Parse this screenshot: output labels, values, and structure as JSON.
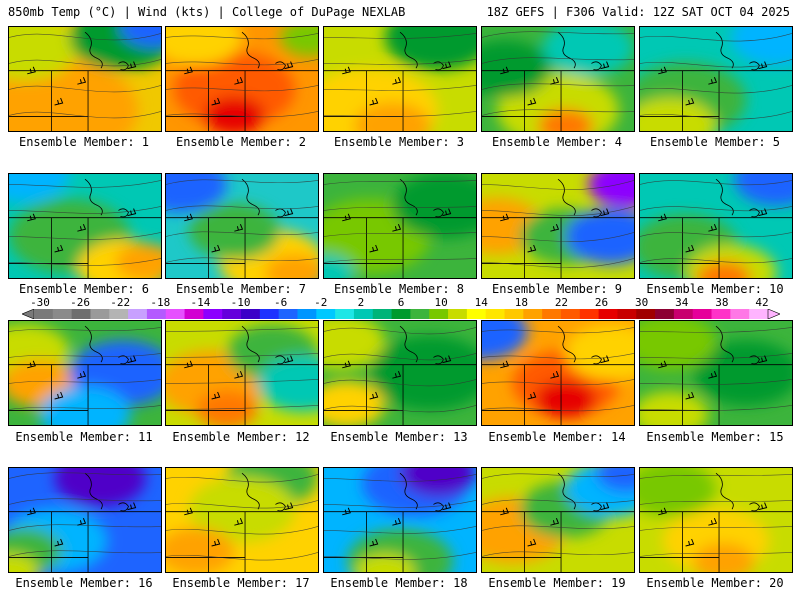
{
  "header": {
    "left": "850mb Temp (°C) | Wind (kts) | College of DuPage NEXLAB",
    "right": "18Z GEFS | F306 Valid: 12Z SAT OCT 04 2025"
  },
  "members": [
    {
      "label": "Ensemble Member: 1",
      "base": "#f0c800",
      "blobs": [
        [
          "#ffa200",
          0.3,
          0.8,
          0.55
        ],
        [
          "#c8dc00",
          0.1,
          0.2,
          0.35
        ],
        [
          "#009a2e",
          0.75,
          0.1,
          0.35
        ],
        [
          "#1e64ff",
          0.95,
          0.0,
          0.22
        ]
      ]
    },
    {
      "label": "Ensemble Member: 2",
      "base": "#ff9600",
      "blobs": [
        [
          "#ff5a00",
          0.45,
          0.6,
          0.4
        ],
        [
          "#e60000",
          0.45,
          0.85,
          0.2
        ],
        [
          "#ffd200",
          0.2,
          0.1,
          0.3
        ],
        [
          "#78c800",
          0.95,
          0.1,
          0.2
        ]
      ]
    },
    {
      "label": "Ensemble Member: 3",
      "base": "#c8dc00",
      "blobs": [
        [
          "#ffd200",
          0.3,
          0.8,
          0.45
        ],
        [
          "#009a2e",
          0.75,
          0.1,
          0.35
        ],
        [
          "#ffa200",
          0.45,
          0.95,
          0.25
        ]
      ]
    },
    {
      "label": "Ensemble Member: 4",
      "base": "#3cb43c",
      "blobs": [
        [
          "#c8dc00",
          0.5,
          0.8,
          0.4
        ],
        [
          "#ff7800",
          0.55,
          0.95,
          0.18
        ],
        [
          "#00c8b4",
          0.7,
          0.2,
          0.3
        ],
        [
          "#009a2e",
          0.15,
          0.4,
          0.3
        ]
      ]
    },
    {
      "label": "Ensemble Member: 5",
      "base": "#00c8b4",
      "blobs": [
        [
          "#3cb43c",
          0.3,
          0.7,
          0.4
        ],
        [
          "#c8dc00",
          0.2,
          0.95,
          0.3
        ],
        [
          "#00b4ff",
          0.9,
          0.1,
          0.3
        ]
      ]
    },
    {
      "label": "Ensemble Member: 6",
      "base": "#00c8b4",
      "blobs": [
        [
          "#3cb43c",
          0.4,
          0.6,
          0.4
        ],
        [
          "#ffd200",
          0.75,
          0.9,
          0.3
        ],
        [
          "#ffa200",
          0.9,
          0.85,
          0.2
        ],
        [
          "#00b4ff",
          0.1,
          0.0,
          0.3
        ]
      ]
    },
    {
      "label": "Ensemble Member: 7",
      "base": "#1ec8c8",
      "blobs": [
        [
          "#ffd200",
          0.7,
          0.85,
          0.35
        ],
        [
          "#ffa200",
          0.85,
          0.95,
          0.2
        ],
        [
          "#1e64ff",
          0.1,
          0.1,
          0.3
        ],
        [
          "#3cb43c",
          0.45,
          0.55,
          0.3
        ]
      ]
    },
    {
      "label": "Ensemble Member: 8",
      "base": "#3cb43c",
      "blobs": [
        [
          "#78c800",
          0.3,
          0.6,
          0.4
        ],
        [
          "#009a2e",
          0.8,
          0.3,
          0.35
        ],
        [
          "#00c8b4",
          0.0,
          0.95,
          0.2
        ]
      ]
    },
    {
      "label": "Ensemble Member: 9",
      "base": "#c8dc00",
      "blobs": [
        [
          "#ffa200",
          0.1,
          0.5,
          0.3
        ],
        [
          "#3cb43c",
          0.55,
          0.6,
          0.3
        ],
        [
          "#1e64ff",
          0.85,
          0.6,
          0.3
        ],
        [
          "#8c00ff",
          0.95,
          0.1,
          0.25
        ]
      ]
    },
    {
      "label": "Ensemble Member: 10",
      "base": "#00c8b4",
      "blobs": [
        [
          "#3cb43c",
          0.3,
          0.7,
          0.35
        ],
        [
          "#c8dc00",
          0.6,
          0.95,
          0.3
        ],
        [
          "#ff7800",
          0.55,
          1.0,
          0.18
        ],
        [
          "#1e64ff",
          0.9,
          0.05,
          0.28
        ]
      ]
    },
    {
      "label": "Ensemble Member: 11",
      "base": "#3cb43c",
      "blobs": [
        [
          "#c8dc00",
          0.1,
          0.3,
          0.3
        ],
        [
          "#ffa200",
          0.2,
          0.6,
          0.25
        ],
        [
          "#1e64ff",
          0.75,
          0.5,
          0.35
        ],
        [
          "#00b4ff",
          0.5,
          0.9,
          0.3
        ]
      ]
    },
    {
      "label": "Ensemble Member: 12",
      "base": "#c8dc00",
      "blobs": [
        [
          "#ffa200",
          0.3,
          0.6,
          0.35
        ],
        [
          "#3cb43c",
          0.7,
          0.3,
          0.3
        ],
        [
          "#00c8b4",
          0.9,
          0.6,
          0.3
        ],
        [
          "#ff7800",
          0.4,
          0.85,
          0.2
        ]
      ]
    },
    {
      "label": "Ensemble Member: 13",
      "base": "#3cb43c",
      "blobs": [
        [
          "#c8dc00",
          0.1,
          0.2,
          0.3
        ],
        [
          "#ffd200",
          0.15,
          0.8,
          0.25
        ],
        [
          "#009a2e",
          0.7,
          0.5,
          0.4
        ]
      ]
    },
    {
      "label": "Ensemble Member: 14",
      "base": "#ffa200",
      "blobs": [
        [
          "#ff5a00",
          0.55,
          0.6,
          0.35
        ],
        [
          "#e60000",
          0.55,
          0.75,
          0.2
        ],
        [
          "#1e64ff",
          0.0,
          0.1,
          0.3
        ],
        [
          "#ffd200",
          0.85,
          0.3,
          0.3
        ]
      ]
    },
    {
      "label": "Ensemble Member: 15",
      "base": "#3cb43c",
      "blobs": [
        [
          "#009a2e",
          0.7,
          0.5,
          0.35
        ],
        [
          "#c8dc00",
          0.2,
          0.9,
          0.25
        ],
        [
          "#78c800",
          0.2,
          0.2,
          0.3
        ]
      ]
    },
    {
      "label": "Ensemble Member: 16",
      "base": "#1e64ff",
      "blobs": [
        [
          "#00b4ff",
          0.3,
          0.7,
          0.35
        ],
        [
          "#3cb43c",
          0.1,
          0.8,
          0.25
        ],
        [
          "#c8dc00",
          0.0,
          1.0,
          0.2
        ],
        [
          "#5000c8",
          0.6,
          0.1,
          0.3
        ]
      ]
    },
    {
      "label": "Ensemble Member: 17",
      "base": "#ffd200",
      "blobs": [
        [
          "#3cb43c",
          0.7,
          0.1,
          0.3
        ],
        [
          "#c8dc00",
          0.5,
          0.4,
          0.35
        ],
        [
          "#ffa200",
          0.2,
          0.8,
          0.25
        ]
      ]
    },
    {
      "label": "Ensemble Member: 18",
      "base": "#00b4ff",
      "blobs": [
        [
          "#1e64ff",
          0.6,
          0.15,
          0.35
        ],
        [
          "#5000c8",
          0.75,
          0.05,
          0.25
        ],
        [
          "#3cb43c",
          0.5,
          0.9,
          0.35
        ],
        [
          "#c8dc00",
          0.4,
          1.0,
          0.2
        ]
      ]
    },
    {
      "label": "Ensemble Member: 19",
      "base": "#c8dc00",
      "blobs": [
        [
          "#ffa200",
          0.2,
          0.6,
          0.35
        ],
        [
          "#3cb43c",
          0.55,
          0.4,
          0.3
        ],
        [
          "#00b4ff",
          0.85,
          0.2,
          0.3
        ],
        [
          "#1e64ff",
          0.95,
          0.05,
          0.2
        ]
      ]
    },
    {
      "label": "Ensemble Member: 20",
      "base": "#c8dc00",
      "blobs": [
        [
          "#ffd200",
          0.5,
          0.7,
          0.35
        ],
        [
          "#ffa200",
          0.55,
          0.9,
          0.2
        ],
        [
          "#78c800",
          0.2,
          0.2,
          0.3
        ]
      ]
    }
  ],
  "colorbar": {
    "ticks": [
      "-30",
      "-26",
      "-22",
      "-18",
      "-14",
      "-10",
      "-6",
      "-2",
      "2",
      "6",
      "10",
      "14",
      "18",
      "22",
      "26",
      "30",
      "34",
      "38",
      "42"
    ],
    "colors": [
      "#7a7a7a",
      "#8a8a8a",
      "#6e6e6e",
      "#9a9a9a",
      "#b4b4b4",
      "#c8a0ff",
      "#b45aff",
      "#e650ff",
      "#d200d2",
      "#8c00ff",
      "#6400dc",
      "#3c00c8",
      "#1e32ff",
      "#1e64ff",
      "#0096ff",
      "#00c8ff",
      "#1ee6e6",
      "#00c8b4",
      "#00b478",
      "#009a2e",
      "#3cb43c",
      "#78c800",
      "#c8dc00",
      "#ffff00",
      "#ffe600",
      "#ffc800",
      "#ffa200",
      "#ff7800",
      "#ff5a00",
      "#ff3200",
      "#e60000",
      "#c80000",
      "#a00000",
      "#8c0032",
      "#c8006e",
      "#e6009a",
      "#ff32c8",
      "#ff78e6",
      "#ffb4ff"
    ]
  }
}
